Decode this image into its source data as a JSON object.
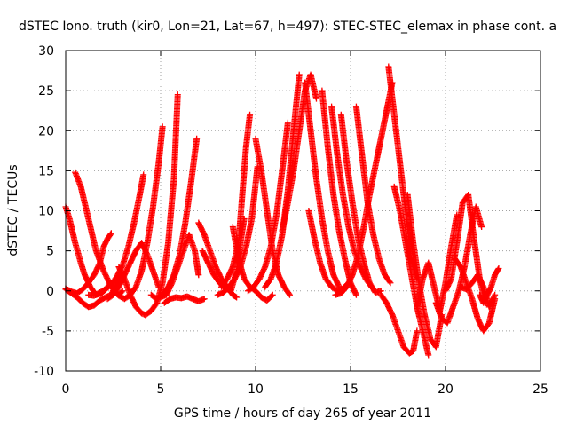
{
  "chart_data": {
    "type": "scatter",
    "title": "dSTEC Iono. truth (kir0, Lon=21, Lat=67, h=497): STEC-STEC_elemax in phase cont. a",
    "xlabel": "GPS time / hours of day 265 of year 2011",
    "ylabel": "dSTEC  / TECUs",
    "xlim": [
      0,
      25
    ],
    "ylim": [
      -10,
      30
    ],
    "xticks": [
      0,
      5,
      10,
      15,
      20,
      25
    ],
    "yticks": [
      -10,
      -5,
      0,
      5,
      10,
      15,
      20,
      25,
      30
    ],
    "x_tick_labels": [
      "0",
      "5",
      "10",
      "15",
      "20",
      "25"
    ],
    "y_tick_labels": [
      "-10",
      "-5",
      "0",
      "5",
      "10",
      "15",
      "20",
      "25",
      "30"
    ],
    "grid": true,
    "marker": "+",
    "color": "#ff0000",
    "series": [
      {
        "x": [
          0.0,
          0.2,
          0.5,
          0.8,
          1.0,
          1.3,
          1.6,
          1.9,
          2.2,
          2.4
        ],
        "y": [
          10.5,
          9.0,
          6.0,
          3.5,
          2.0,
          0.5,
          -0.5,
          -0.3,
          0.5,
          1.0
        ]
      },
      {
        "x": [
          0.5,
          0.8,
          1.0,
          1.3,
          1.6,
          2.0,
          2.4,
          2.8,
          3.0
        ],
        "y": [
          14.8,
          13.0,
          11.0,
          8.0,
          5.0,
          2.5,
          0.5,
          -0.5,
          0.0
        ]
      },
      {
        "x": [
          0.0,
          0.3,
          0.6,
          0.9,
          1.2,
          1.5,
          1.8,
          2.1,
          2.4,
          2.7,
          2.9
        ],
        "y": [
          0.2,
          -0.3,
          -0.8,
          -1.5,
          -2.0,
          -1.8,
          -1.2,
          -0.8,
          -0.5,
          1.0,
          2.0
        ]
      },
      {
        "x": [
          0.0,
          0.3,
          0.6,
          0.9,
          1.2,
          1.5,
          1.8,
          2.0,
          2.2,
          2.4
        ],
        "y": [
          0.3,
          -0.1,
          -0.3,
          0.2,
          1.0,
          2.0,
          3.5,
          5.5,
          6.5,
          7.2
        ]
      },
      {
        "x": [
          1.2,
          1.5,
          1.8,
          2.1,
          2.4,
          2.7,
          3.0,
          3.3,
          3.6,
          3.9,
          4.1
        ],
        "y": [
          -0.5,
          -0.6,
          -0.2,
          0.2,
          0.8,
          1.8,
          3.2,
          5.5,
          8.5,
          12.0,
          14.5
        ]
      },
      {
        "x": [
          2.5,
          2.8,
          3.1,
          3.4,
          3.7,
          4.0,
          4.3,
          4.6,
          4.9,
          5.1
        ],
        "y": [
          0.0,
          -0.6,
          -1.0,
          -0.5,
          0.5,
          2.5,
          6.0,
          10.5,
          16.0,
          20.5
        ]
      },
      {
        "x": [
          2.8,
          3.1,
          3.4,
          3.7,
          4.0,
          4.2
        ],
        "y": [
          3.0,
          1.5,
          -0.5,
          -2.0,
          -2.8,
          -3.0
        ]
      },
      {
        "x": [
          2.2,
          2.5,
          2.8,
          3.1,
          3.4,
          3.7,
          4.0,
          4.3,
          4.6,
          4.9
        ],
        "y": [
          -1.0,
          -0.5,
          0.5,
          2.0,
          3.5,
          5.0,
          6.0,
          4.5,
          2.5,
          0.5
        ]
      },
      {
        "x": [
          4.2,
          4.5,
          4.8,
          5.1,
          5.4,
          5.7,
          5.9
        ],
        "y": [
          -3.0,
          -2.5,
          -1.5,
          1.0,
          6.0,
          14.0,
          24.5
        ]
      },
      {
        "x": [
          4.5,
          4.8,
          5.1,
          5.4,
          5.7,
          6.0,
          6.3,
          6.6,
          6.9
        ],
        "y": [
          -0.5,
          -1.0,
          -0.5,
          0.5,
          2.0,
          4.5,
          8.5,
          13.5,
          19.0
        ]
      },
      {
        "x": [
          5.0,
          5.3,
          5.6,
          5.9,
          6.2,
          6.5,
          6.8,
          7.0
        ],
        "y": [
          -0.8,
          -0.5,
          1.0,
          3.0,
          5.0,
          7.0,
          5.0,
          2.0
        ]
      },
      {
        "x": [
          5.2,
          5.5,
          5.8,
          6.1,
          6.4,
          6.7,
          7.0,
          7.3
        ],
        "y": [
          -1.5,
          -1.0,
          -0.8,
          -0.9,
          -0.7,
          -1.0,
          -1.3,
          -1.0
        ]
      },
      {
        "x": [
          7.0,
          7.3,
          7.6,
          7.9,
          8.2,
          8.5,
          8.8,
          9.0
        ],
        "y": [
          8.5,
          7.0,
          5.0,
          3.0,
          1.5,
          0.5,
          -0.5,
          -0.8
        ]
      },
      {
        "x": [
          7.2,
          7.5,
          7.8,
          8.1,
          8.4,
          8.7,
          9.0,
          9.2,
          9.4
        ],
        "y": [
          5.0,
          3.5,
          2.0,
          1.0,
          0.3,
          0.0,
          2.5,
          6.0,
          9.0
        ]
      },
      {
        "x": [
          8.0,
          8.3,
          8.6,
          8.9,
          9.2,
          9.5,
          9.8,
          10.1
        ],
        "y": [
          -0.5,
          -0.2,
          0.5,
          1.5,
          3.0,
          5.5,
          9.0,
          15.5
        ]
      },
      {
        "x": [
          8.2,
          8.5,
          8.8,
          9.1,
          9.3,
          9.5,
          9.7
        ],
        "y": [
          0.5,
          1.5,
          3.0,
          6.0,
          12.0,
          18.0,
          22.0
        ]
      },
      {
        "x": [
          8.8,
          9.1,
          9.4,
          9.7,
          10.0,
          10.3,
          10.6,
          10.9
        ],
        "y": [
          8.0,
          4.0,
          1.5,
          0.5,
          0.0,
          -0.8,
          -1.2,
          -0.5
        ]
      },
      {
        "x": [
          10.0,
          10.3,
          10.6,
          10.9,
          11.2,
          11.5,
          11.8
        ],
        "y": [
          19.0,
          15.0,
          10.0,
          5.0,
          2.0,
          0.5,
          -0.5
        ]
      },
      {
        "x": [
          9.6,
          9.9,
          10.2,
          10.5,
          10.8,
          11.1,
          11.4,
          11.7
        ],
        "y": [
          0.0,
          0.5,
          1.5,
          3.0,
          5.5,
          9.5,
          15.0,
          21.0
        ]
      },
      {
        "x": [
          10.5,
          10.8,
          11.1,
          11.4,
          11.7,
          12.0,
          12.3
        ],
        "y": [
          0.5,
          1.5,
          3.5,
          7.0,
          12.5,
          20.0,
          27.0
        ]
      },
      {
        "x": [
          11.4,
          11.7,
          12.0,
          12.3,
          12.6,
          12.9,
          13.2
        ],
        "y": [
          7.5,
          11.0,
          15.0,
          20.0,
          25.0,
          27.0,
          24.0
        ]
      },
      {
        "x": [
          12.6,
          12.9,
          13.2,
          13.5,
          13.8,
          14.1,
          14.4
        ],
        "y": [
          26.0,
          20.0,
          14.0,
          9.0,
          5.0,
          2.0,
          0.5
        ]
      },
      {
        "x": [
          12.8,
          13.1,
          13.4,
          13.7,
          14.0,
          14.3,
          14.6,
          14.9
        ],
        "y": [
          10.0,
          6.5,
          3.5,
          1.5,
          0.5,
          0.0,
          0.3,
          1.0
        ]
      },
      {
        "x": [
          13.5,
          13.8,
          14.1,
          14.4,
          14.7,
          15.0,
          15.3
        ],
        "y": [
          25.0,
          18.0,
          12.0,
          7.5,
          4.0,
          1.0,
          -0.5
        ]
      },
      {
        "x": [
          14.0,
          14.3,
          14.6,
          14.9,
          15.2,
          15.5,
          15.8,
          16.1
        ],
        "y": [
          23.0,
          17.0,
          12.0,
          8.0,
          5.0,
          3.0,
          1.5,
          0.5
        ]
      },
      {
        "x": [
          14.5,
          14.8,
          15.1,
          15.4,
          15.7,
          16.0,
          16.3,
          16.6
        ],
        "y": [
          22.0,
          16.0,
          11.0,
          6.5,
          3.5,
          1.0,
          -0.2,
          0.0
        ]
      },
      {
        "x": [
          15.3,
          15.6,
          15.9,
          16.2,
          16.5,
          16.8,
          17.1
        ],
        "y": [
          23.0,
          17.0,
          11.0,
          7.0,
          4.0,
          2.0,
          1.0
        ]
      },
      {
        "x": [
          14.2,
          14.5,
          14.8,
          15.1,
          15.4,
          15.7,
          16.0,
          16.3,
          16.6,
          16.9,
          17.2
        ],
        "y": [
          -0.5,
          -0.3,
          0.5,
          2.0,
          4.5,
          8.0,
          12.0,
          15.5,
          19.0,
          22.5,
          26.0
        ]
      },
      {
        "x": [
          17.0,
          17.2,
          17.4,
          17.6,
          17.8,
          18.0,
          18.2,
          18.5
        ],
        "y": [
          28.0,
          24.0,
          20.0,
          16.0,
          12.0,
          8.0,
          4.0,
          1.5
        ]
      },
      {
        "x": [
          16.6,
          16.9,
          17.2,
          17.5,
          17.8,
          18.1,
          18.3,
          18.5
        ],
        "y": [
          -0.5,
          -1.5,
          -3.0,
          -5.0,
          -7.0,
          -7.8,
          -7.5,
          -5.0
        ]
      },
      {
        "x": [
          17.3,
          17.6,
          17.9,
          18.2,
          18.5,
          18.8,
          19.1
        ],
        "y": [
          13.0,
          10.0,
          6.0,
          2.0,
          -2.0,
          -5.0,
          -8.0
        ]
      },
      {
        "x": [
          18.0,
          18.3,
          18.6,
          18.9,
          19.2,
          19.5,
          19.8
        ],
        "y": [
          12.0,
          6.0,
          1.0,
          -3.0,
          -6.0,
          -7.0,
          -3.0
        ]
      },
      {
        "x": [
          18.5,
          18.8,
          19.1,
          19.4,
          19.7,
          20.0,
          20.3,
          20.6
        ],
        "y": [
          -2.0,
          1.5,
          3.5,
          0.5,
          -2.5,
          1.0,
          5.5,
          9.5
        ]
      },
      {
        "x": [
          19.5,
          19.8,
          20.1,
          20.4,
          20.7,
          21.0,
          21.3,
          21.6,
          21.9
        ],
        "y": [
          -1.5,
          -3.5,
          -4.0,
          -2.0,
          0.0,
          3.0,
          7.0,
          10.5,
          8.0
        ]
      },
      {
        "x": [
          20.0,
          20.3,
          20.6,
          20.9,
          21.2,
          21.5,
          21.8,
          22.1
        ],
        "y": [
          0.0,
          1.5,
          6.0,
          11.0,
          12.0,
          6.5,
          1.5,
          -1.5
        ]
      },
      {
        "x": [
          20.5,
          20.8,
          21.1,
          21.4,
          21.7,
          22.0,
          22.3,
          22.6
        ],
        "y": [
          4.0,
          3.0,
          1.0,
          -1.0,
          -3.5,
          -5.0,
          -4.0,
          -1.0
        ]
      },
      {
        "x": [
          21.8,
          22.0,
          22.2,
          22.4,
          22.6,
          22.8
        ],
        "y": [
          -0.5,
          -1.5,
          -0.5,
          0.5,
          2.0,
          2.8
        ]
      },
      {
        "x": [
          20.8,
          21.1,
          21.4,
          21.7,
          22.0,
          22.3,
          22.6
        ],
        "y": [
          0.5,
          0.2,
          1.0,
          2.0,
          0.5,
          -2.0,
          -0.5
        ]
      }
    ]
  }
}
